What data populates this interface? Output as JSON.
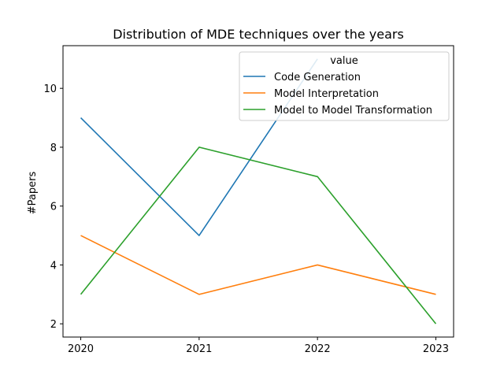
{
  "chart_data": {
    "type": "line",
    "title": "Distribution of MDE techniques over the years",
    "xlabel": "",
    "ylabel": "#Papers",
    "x": [
      2020,
      2021,
      2022,
      2023
    ],
    "xlim": [
      2019.85,
      2023.15
    ],
    "ylim": [
      1.55,
      11.45
    ],
    "yticks": [
      2,
      4,
      6,
      8,
      10
    ],
    "grid": false,
    "legend": {
      "title": "value",
      "position": "top-right"
    },
    "series": [
      {
        "name": "Code Generation",
        "color": "#1f77b4",
        "values": [
          9,
          5,
          11,
          null
        ]
      },
      {
        "name": "Model Interpretation",
        "color": "#ff7f0e",
        "values": [
          5,
          3,
          4,
          3
        ]
      },
      {
        "name": "Model to Model Transformation",
        "color": "#2ca02c",
        "values": [
          3,
          8,
          7,
          2
        ]
      }
    ]
  }
}
